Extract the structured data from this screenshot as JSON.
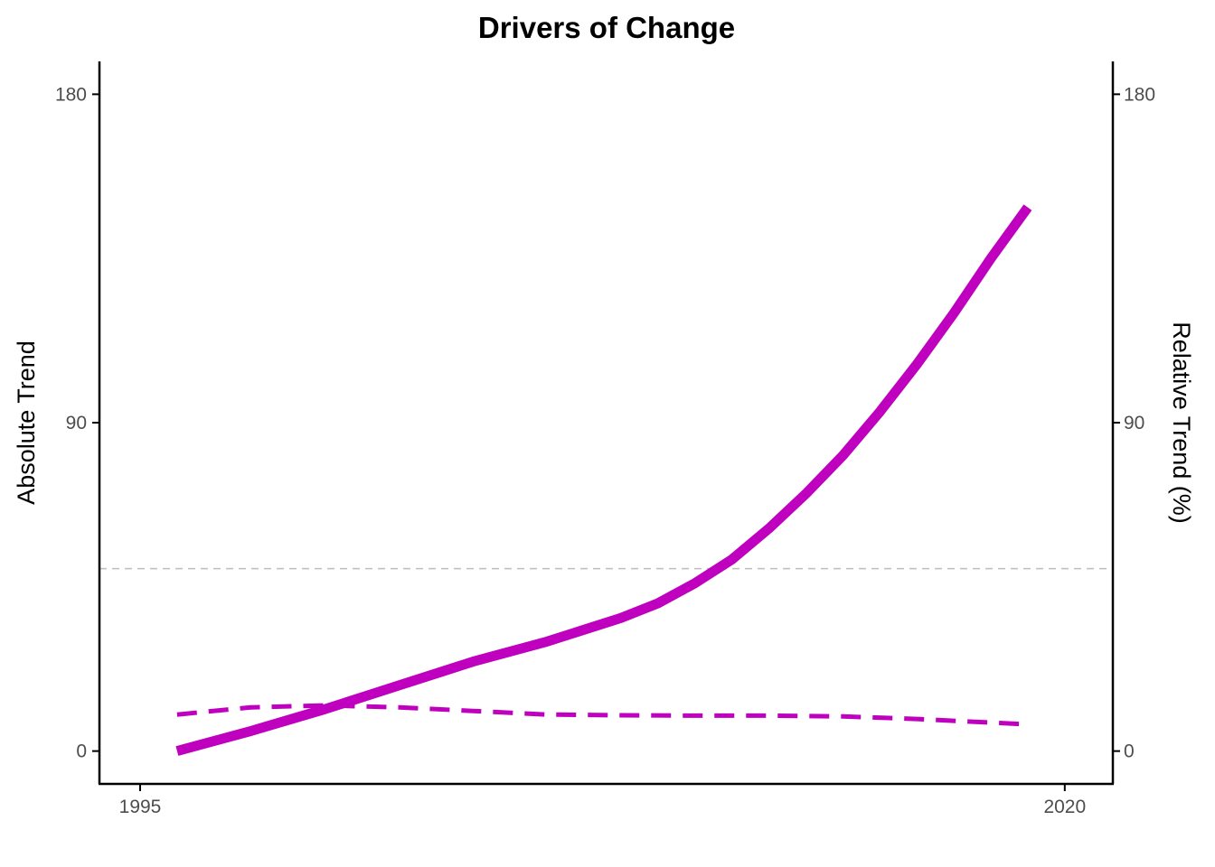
{
  "chart_data": {
    "type": "line",
    "title": "Drivers of Change",
    "ylabel_left": "Absolute Trend",
    "ylabel_right": "Relative Trend (%)",
    "x_ticks": [
      1995,
      2020
    ],
    "y_ticks": [
      0,
      90,
      180
    ],
    "y2_ticks": [
      0,
      90,
      180
    ],
    "xlim": [
      1993.9,
      2021.3
    ],
    "ylim": [
      -9,
      189
    ],
    "grid": false,
    "reference_line": {
      "y": 50,
      "style": "dashed",
      "color": "#bebebe"
    },
    "series": [
      {
        "axis": "left",
        "style": "solid",
        "color": "#bf00bf",
        "x": [
          1996,
          1998,
          2000,
          2002,
          2004,
          2006,
          2008,
          2009,
          2010,
          2011,
          2012,
          2013,
          2014,
          2015,
          2016,
          2017,
          2018,
          2019
        ],
        "y": [
          0,
          5.5,
          11.5,
          18,
          24.5,
          30,
          36.5,
          40.5,
          46,
          52.5,
          61,
          70.5,
          81,
          93,
          106,
          120,
          135,
          149
        ]
      },
      {
        "axis": "right",
        "style": "dashed",
        "color": "#bf00bf",
        "x": [
          1996,
          1998,
          2000,
          2002,
          2004,
          2006,
          2008,
          2010,
          2012,
          2014,
          2016,
          2018,
          2019
        ],
        "y": [
          10,
          12,
          12.5,
          12,
          11,
          10,
          9.8,
          9.7,
          9.7,
          9.5,
          8.8,
          7.8,
          7.3
        ]
      }
    ]
  }
}
